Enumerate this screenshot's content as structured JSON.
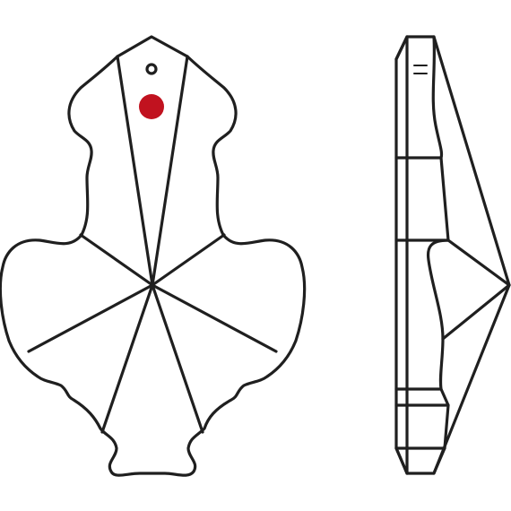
{
  "diagram": {
    "views": [
      {
        "name": "front-view",
        "shape": "pendeloque-crystal"
      },
      {
        "name": "side-view",
        "shape": "pendeloque-crystal-profile"
      }
    ],
    "colors": {
      "outline": "#1f1f1f",
      "background": "#ffffff",
      "marker": "#c1121f"
    },
    "markers": [
      {
        "name": "mounting-hole",
        "type": "hole"
      },
      {
        "name": "red-dot-marker",
        "type": "dot",
        "color": "#c1121f"
      }
    ]
  }
}
